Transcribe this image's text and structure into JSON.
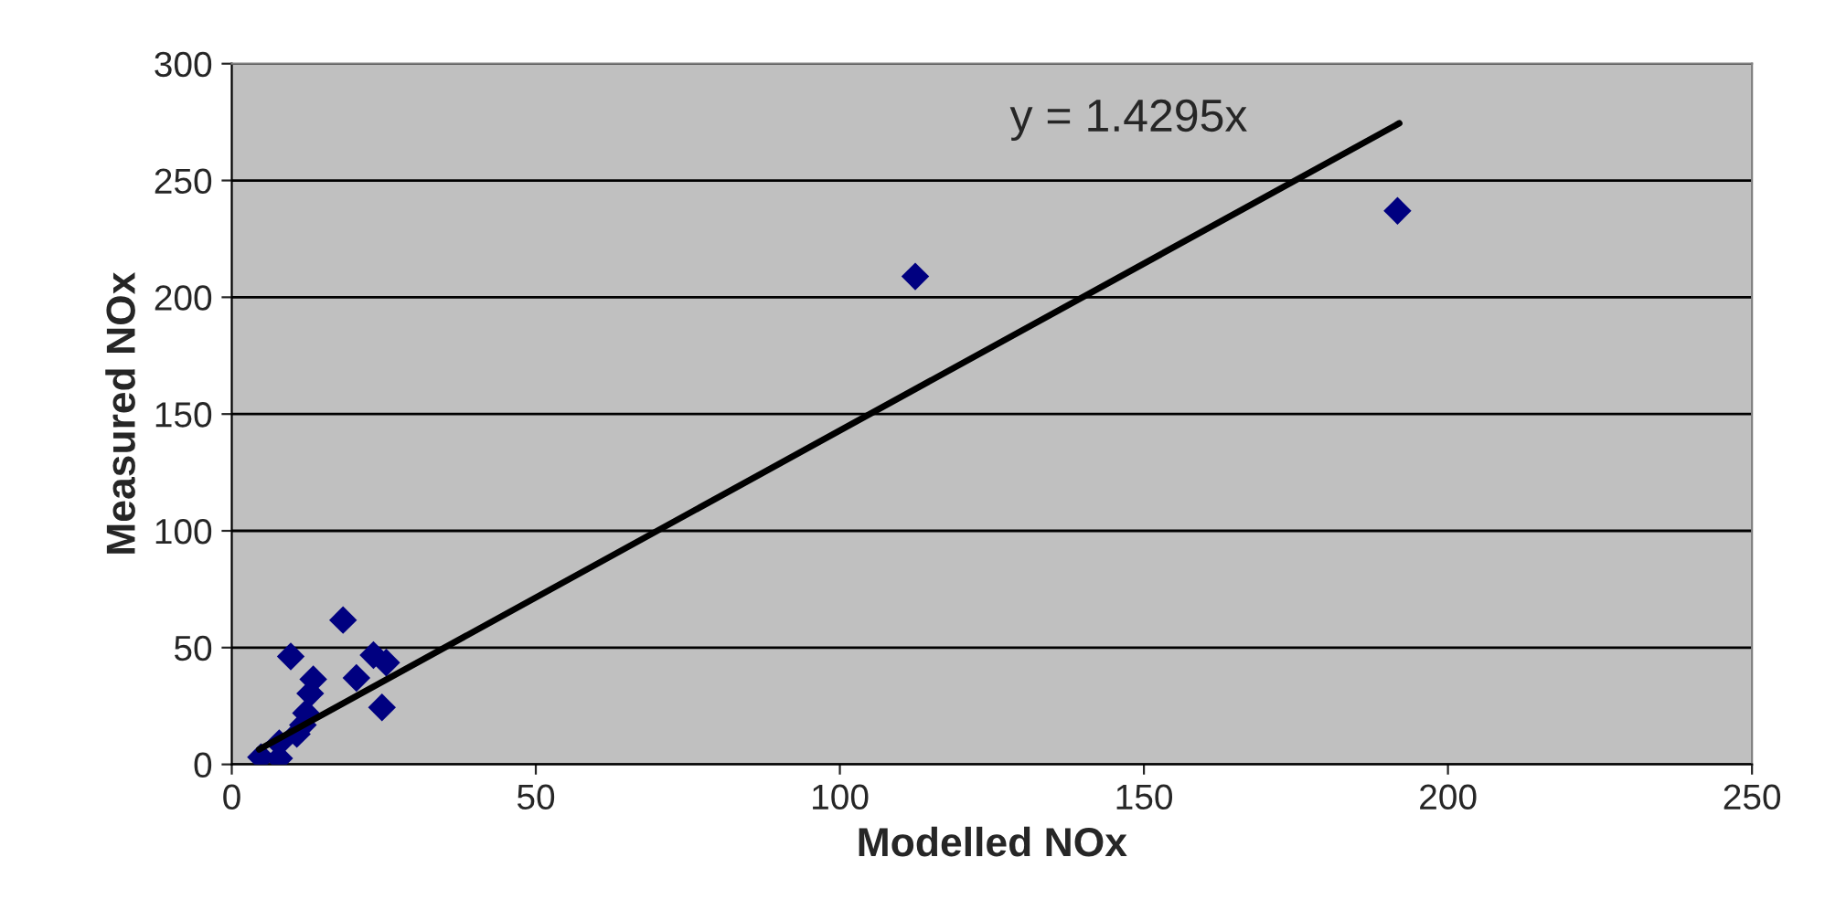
{
  "chart_data": {
    "type": "scatter",
    "xlabel": "Modelled NOx",
    "ylabel": "Measured NOx",
    "xlim": [
      0,
      250
    ],
    "xticks": [
      0,
      50,
      100,
      150,
      200,
      250
    ],
    "ylim": [
      0,
      300
    ],
    "yticks": [
      0,
      50,
      100,
      150,
      200,
      250,
      300
    ],
    "grid": "y",
    "legend": false,
    "marker": "diamond",
    "series": [
      {
        "color": "#000080",
        "x": [
          18.3,
          9.7,
          23.3,
          25.4,
          20.5,
          13.4,
          12.9,
          24.7,
          12.2,
          11.7,
          10.7,
          7.8,
          4.8,
          7.8,
          112.4,
          191.7
        ],
        "values": [
          61.8,
          46.2,
          46.8,
          43.6,
          37,
          36.4,
          30.4,
          24.4,
          22,
          16.9,
          13,
          9.1,
          3.1,
          2.6,
          208.9,
          237
        ]
      },
      {
        "type": "line",
        "color": "#000000",
        "marker": "none",
        "x": [
          4.5,
          192
        ],
        "values": [
          6.4,
          274.5
        ]
      }
    ],
    "annotations": [
      "y = 1.4295x"
    ]
  }
}
